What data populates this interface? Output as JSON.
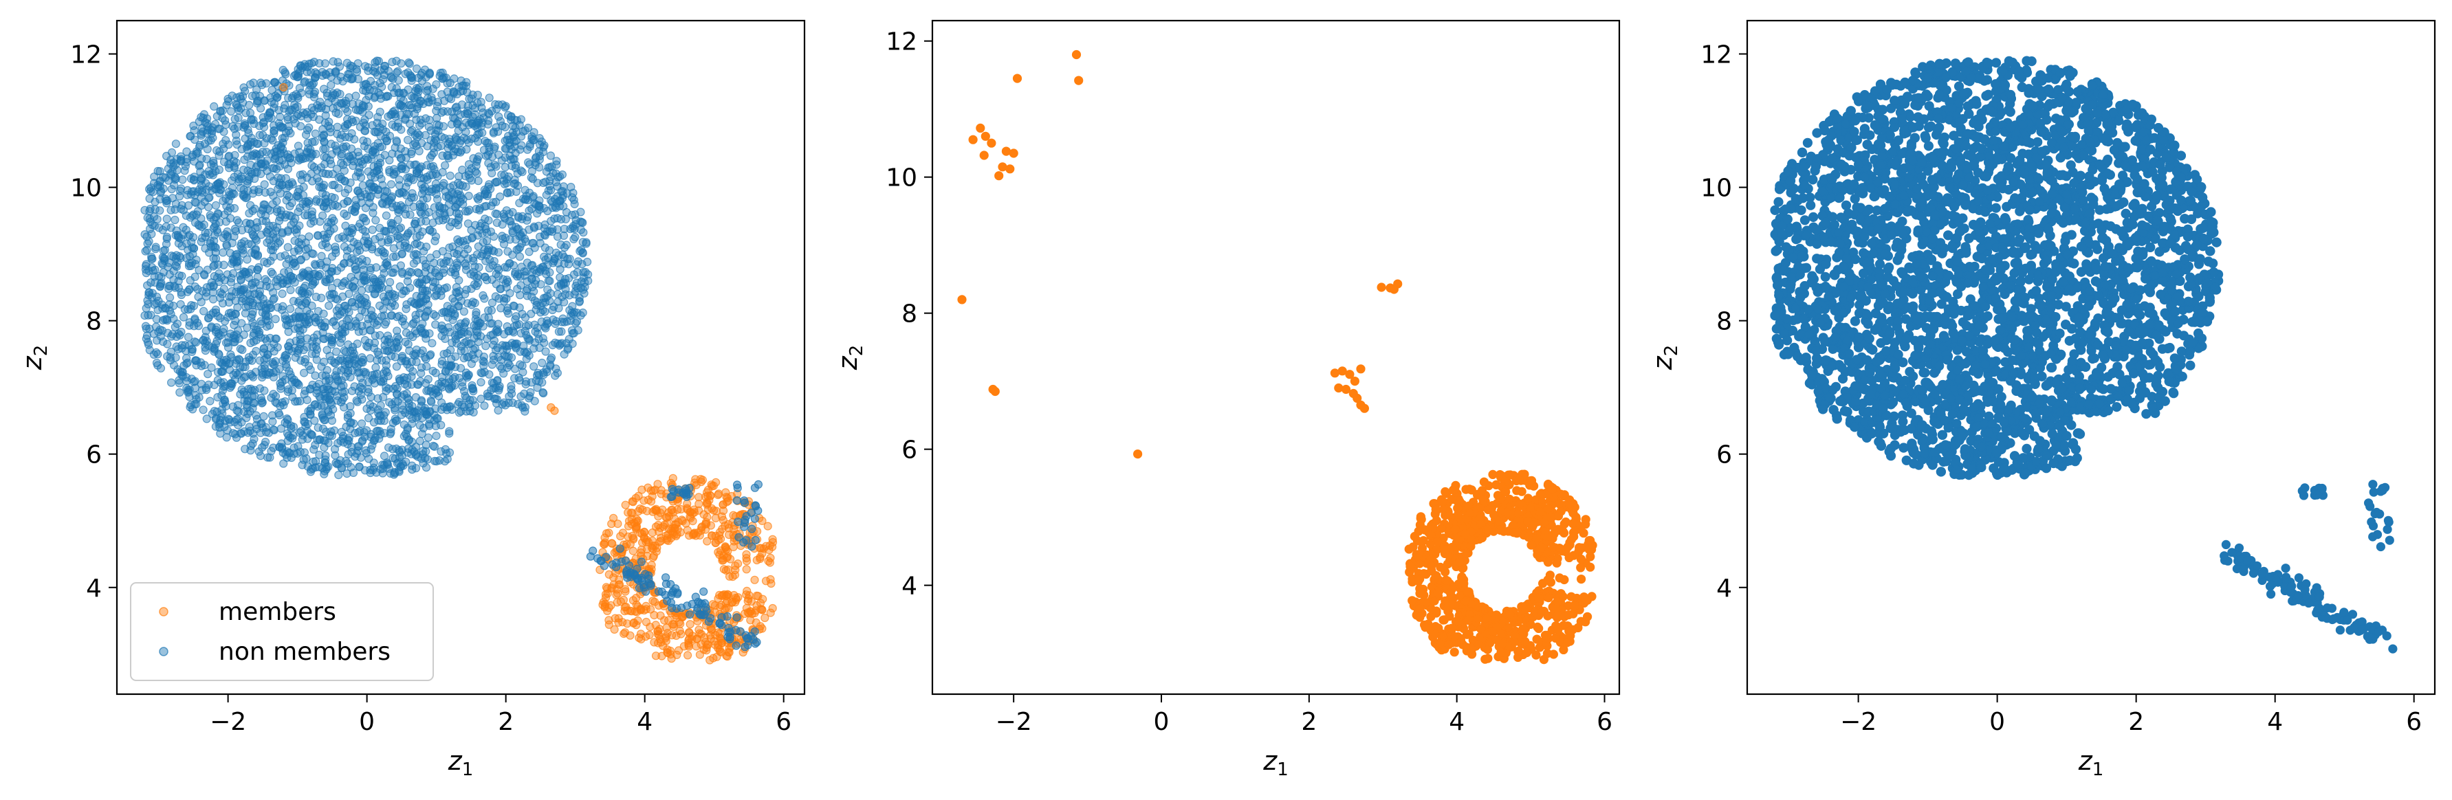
{
  "colors": {
    "members": "#ff7f0e",
    "non_members": "#1f77b4"
  },
  "chart_data": [
    {
      "type": "scatter",
      "xlabel": "z",
      "xlabel_sub": "1",
      "ylabel": "z",
      "ylabel_sub": "2",
      "xlim": [
        -3.6,
        6.3
      ],
      "ylim": [
        2.4,
        12.5
      ],
      "xticks": [
        -2,
        0,
        2,
        4,
        6
      ],
      "yticks": [
        4,
        6,
        8,
        10,
        12
      ],
      "legend": {
        "position": "bottom-left",
        "entries": [
          "members",
          "non members"
        ]
      },
      "series": [
        {
          "name": "members",
          "color": "#ff7f0e",
          "alpha": 0.45,
          "pattern": "members_cluster"
        },
        {
          "name": "non members",
          "color": "#1f77b4",
          "alpha": 0.45,
          "pattern": "nonmembers_blob_small"
        }
      ]
    },
    {
      "type": "scatter",
      "xlabel": "z",
      "xlabel_sub": "1",
      "ylabel": "z",
      "ylabel_sub": "2",
      "xlim": [
        -3.1,
        6.2
      ],
      "ylim": [
        2.4,
        12.3
      ],
      "xticks": [
        -2,
        0,
        2,
        4,
        6
      ],
      "yticks": [
        4,
        6,
        8,
        10,
        12
      ],
      "series": [
        {
          "color": "#ff7f0e",
          "alpha": 1.0,
          "pattern": "members_cluster",
          "points": [
            [
              -1.15,
              11.8
            ],
            [
              -1.12,
              11.42
            ],
            [
              -1.95,
              11.45
            ],
            [
              -2.45,
              10.72
            ],
            [
              -2.38,
              10.6
            ],
            [
              -2.55,
              10.55
            ],
            [
              -2.3,
              10.5
            ],
            [
              -2.4,
              10.32
            ],
            [
              -2.1,
              10.38
            ],
            [
              -2.0,
              10.35
            ],
            [
              -2.15,
              10.15
            ],
            [
              -2.05,
              10.12
            ],
            [
              -2.2,
              10.02
            ],
            [
              -2.7,
              8.2
            ],
            [
              -2.28,
              6.88
            ],
            [
              -2.25,
              6.85
            ],
            [
              -0.32,
              5.93
            ],
            [
              2.98,
              8.38
            ],
            [
              3.1,
              8.37
            ],
            [
              3.2,
              8.43
            ],
            [
              3.15,
              8.35
            ],
            [
              2.35,
              7.12
            ],
            [
              2.45,
              7.15
            ],
            [
              2.55,
              7.1
            ],
            [
              2.7,
              7.18
            ],
            [
              2.4,
              6.9
            ],
            [
              2.5,
              6.88
            ],
            [
              2.6,
              6.82
            ],
            [
              2.65,
              6.75
            ],
            [
              2.7,
              6.65
            ],
            [
              2.75,
              6.6
            ],
            [
              2.62,
              7.0
            ]
          ]
        }
      ]
    },
    {
      "type": "scatter",
      "xlabel": "z",
      "xlabel_sub": "1",
      "ylabel": "z",
      "ylabel_sub": "2",
      "xlim": [
        -3.6,
        6.3
      ],
      "ylim": [
        2.4,
        12.5
      ],
      "xticks": [
        -2,
        0,
        2,
        4,
        6
      ],
      "yticks": [
        4,
        6,
        8,
        10,
        12
      ],
      "series": [
        {
          "color": "#1f77b4",
          "alpha": 1.0,
          "pattern": "nonmembers_blob_full"
        }
      ]
    }
  ]
}
